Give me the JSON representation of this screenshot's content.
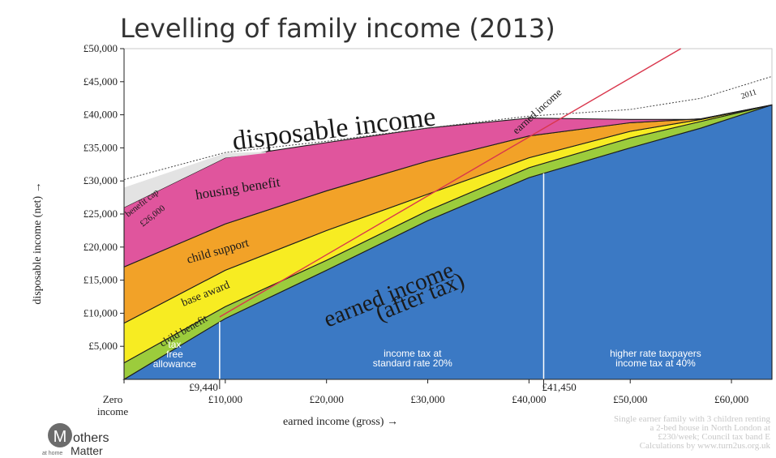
{
  "chart_data": {
    "type": "area",
    "title": "Levelling of family income (2013)",
    "xlabel": "earned income (gross) →",
    "ylabel": "disposable income (net) →",
    "xlim": [
      0,
      64000
    ],
    "ylim": [
      0,
      50000
    ],
    "x_ticks": [
      {
        "value": 0,
        "label": "Zero"
      },
      {
        "value": 10000,
        "label": "£10,000"
      },
      {
        "value": 20000,
        "label": "£20,000"
      },
      {
        "value": 30000,
        "label": "£30,000"
      },
      {
        "value": 40000,
        "label": "£40,000"
      },
      {
        "value": 50000,
        "label": "£50,000"
      },
      {
        "value": 60000,
        "label": "£60,000"
      }
    ],
    "x_zero_sublabel": "income",
    "x_markers": [
      {
        "value": 9440,
        "label": "£9,440"
      },
      {
        "value": 41450,
        "label": "£41,450"
      }
    ],
    "y_ticks": [
      "£5,000",
      "£10,000",
      "£15,000",
      "£20,000",
      "£25,000",
      "£30,000",
      "£35,000",
      "£40,000",
      "£45,000",
      "£50,000"
    ],
    "y_tick_values": [
      5000,
      10000,
      15000,
      20000,
      25000,
      30000,
      35000,
      40000,
      45000,
      50000
    ],
    "x": [
      0,
      10000,
      20000,
      30000,
      40000,
      50000,
      57000,
      64000
    ],
    "series": [
      {
        "name": "earned income (after tax)",
        "color": "#3b79c4",
        "values": [
          0,
          9200,
          16500,
          24000,
          30500,
          35000,
          38000,
          41500
        ]
      },
      {
        "name": "child benefit",
        "color": "#9ccc3c",
        "values": [
          2500,
          11000,
          18000,
          25500,
          32000,
          36500,
          39000,
          41500
        ]
      },
      {
        "name": "base award",
        "color": "#f7ec22",
        "values": [
          8500,
          16500,
          22500,
          28000,
          33500,
          37500,
          39300,
          41500
        ]
      },
      {
        "name": "child support",
        "color": "#f2a228",
        "values": [
          17000,
          23500,
          28500,
          33000,
          36800,
          38800,
          39400,
          41500
        ]
      },
      {
        "name": "housing benefit",
        "color": "#e0559d",
        "values": [
          26000,
          33500,
          35800,
          38000,
          39500,
          39300,
          39300,
          41500
        ]
      }
    ],
    "cap_band": {
      "name": "benefit cap £26,000",
      "color": "#e3e3e3",
      "x": [
        0,
        10000,
        14000
      ],
      "upper": [
        29000,
        34200,
        34400
      ],
      "lower": [
        26000,
        33500,
        34200
      ]
    },
    "earned_income_line": {
      "name": "earned income",
      "color": "#d9364c",
      "x": [
        9440,
        55000
      ],
      "values": [
        9440,
        50000
      ]
    },
    "line_2011": {
      "name": "2011",
      "color": "#444444",
      "x": [
        0,
        10000,
        20000,
        30000,
        40000,
        50000,
        57000,
        64000
      ],
      "values": [
        30200,
        34300,
        36000,
        38000,
        39800,
        40800,
        42500,
        45800
      ]
    },
    "labels": {
      "disposable": "disposable income",
      "earned_after_tax_1": "earned income",
      "earned_after_tax_2": "(after tax)",
      "housing": "housing benefit",
      "child_support": "child support",
      "base_award": "base award",
      "child_benefit": "child benefit",
      "cap_1": "benefit cap",
      "cap_2": "£26,000",
      "earned_line": "earned income",
      "year_2011": "2011"
    },
    "regions": [
      {
        "lines": [
          "tax",
          "free",
          "allowance"
        ],
        "x": 5000
      },
      {
        "lines": [
          "income tax at",
          "standard rate 20%"
        ],
        "x": 28500
      },
      {
        "lines": [
          "higher rate taxpayers",
          "income tax at 40%"
        ],
        "x": 52500
      }
    ],
    "footnote": [
      "Single earner family with 3 children renting",
      "a 2-bed house in North London at",
      "£230/week; Council tax band E",
      "Calculations by www.turn2us.org.uk"
    ]
  },
  "logo": {
    "letter": "M",
    "line1": "others",
    "small": "at home",
    "line2": "Matter"
  }
}
